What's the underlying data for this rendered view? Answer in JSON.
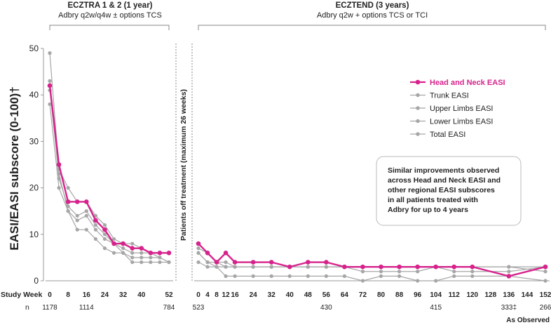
{
  "chart_data": {
    "type": "line",
    "ylabel": "EASI/EASI subscore (0-100)†",
    "ylim": [
      0,
      50
    ],
    "yticks": [
      0,
      10,
      20,
      30,
      40,
      50
    ],
    "grid": false,
    "legend_position": "right",
    "colors": {
      "highlight": "#d6238c",
      "gray": "#a6a6a6",
      "text": "#222222"
    },
    "separator_label": "Patients off treatment (maximum 26 weeks)",
    "callout": "Similar improvements observed across Head and Neck EASI and other regional EASI subscores in all patients treated with Adbry for up to 4 years",
    "row_label": "Study Week",
    "n_label": "n",
    "footer_note": "As Observed",
    "panels": [
      {
        "title": "ECZTRA 1 & 2 (1 year)",
        "subtitle": "Adbry q2w/q4w ± options TCS",
        "x": [
          0,
          4,
          8,
          12,
          16,
          20,
          24,
          28,
          32,
          36,
          40,
          44,
          48,
          52
        ],
        "xticks": [
          0,
          8,
          16,
          24,
          32,
          40,
          52
        ],
        "n_ticks": [
          {
            "x": 0,
            "label": "1178"
          },
          {
            "x": 16,
            "label": "1114"
          },
          {
            "x": 52,
            "label": "784"
          }
        ],
        "series": [
          {
            "name": "Total EASI",
            "values": [
              49,
              24,
              20,
              17,
              17,
              14,
              12,
              9,
              8,
              8,
              7,
              6,
              6,
              6
            ]
          },
          {
            "name": "Lower Limbs EASI",
            "values": [
              43,
              22,
              16,
              14,
              15,
              12,
              10,
              8,
              7,
              6,
              6,
              6,
              5,
              4
            ]
          },
          {
            "name": "Upper Limbs EASI",
            "values": [
              41,
              23,
              15,
              13,
              14,
              11,
              9,
              8,
              6,
              5,
              5,
              5,
              5,
              4
            ]
          },
          {
            "name": "Trunk EASI",
            "values": [
              38,
              20,
              15,
              11,
              11,
              9,
              7,
              6,
              6,
              4,
              4,
              4,
              4,
              4
            ]
          },
          {
            "name": "Head and Neck EASI",
            "highlight": true,
            "values": [
              42,
              25,
              17,
              17,
              17,
              13,
              11,
              8,
              8,
              7,
              7,
              6,
              6,
              6
            ]
          }
        ]
      },
      {
        "title": "ECZTEND (3 years)",
        "subtitle": "Adbry q2w + options TCS or TCI",
        "x": [
          0,
          4,
          8,
          12,
          16,
          24,
          32,
          40,
          48,
          56,
          64,
          72,
          80,
          88,
          96,
          104,
          112,
          120,
          136,
          152
        ],
        "xticks": [
          0,
          4,
          8,
          12,
          16,
          24,
          32,
          40,
          48,
          56,
          64,
          72,
          80,
          88,
          96,
          104,
          112,
          120,
          128,
          136,
          144,
          152
        ],
        "n_ticks": [
          {
            "x": 0,
            "label": "523"
          },
          {
            "x": 56,
            "label": "430"
          },
          {
            "x": 104,
            "label": "415"
          },
          {
            "x": 136,
            "label": "333‡"
          },
          {
            "x": 152,
            "label": "266"
          }
        ],
        "series": [
          {
            "name": "Total EASI",
            "values": [
              7,
              6,
              4,
              4,
              3,
              3,
              3,
              3,
              3,
              3,
              3,
              3,
              3,
              3,
              3,
              3,
              3,
              3,
              3,
              3
            ]
          },
          {
            "name": "Lower Limbs EASI",
            "values": [
              6,
              4,
              4,
              3,
              3,
              3,
              3,
              3,
              3,
              3,
              3,
              3,
              3,
              3,
              3,
              3,
              3,
              3,
              3,
              2
            ]
          },
          {
            "name": "Upper Limbs EASI",
            "values": [
              6,
              4,
              3,
              3,
              3,
              3,
              3,
              3,
              3,
              3,
              3,
              2,
              2,
              2,
              2,
              3,
              2,
              2,
              2,
              3
            ]
          },
          {
            "name": "Trunk EASI",
            "values": [
              4,
              3,
              3,
              1,
              1,
              1,
              1,
              1,
              1,
              1,
              1,
              0,
              1,
              1,
              0,
              0,
              1,
              1,
              1,
              0
            ]
          },
          {
            "name": "Head and Neck EASI",
            "highlight": true,
            "values": [
              8,
              6,
              4,
              6,
              4,
              4,
              4,
              3,
              4,
              4,
              3,
              3,
              3,
              3,
              3,
              3,
              3,
              3,
              1,
              3
            ]
          }
        ]
      }
    ],
    "legend": [
      "Head and Neck EASI",
      "Trunk EASI",
      "Upper Limbs EASI",
      "Lower Limbs EASI",
      "Total EASI"
    ]
  }
}
